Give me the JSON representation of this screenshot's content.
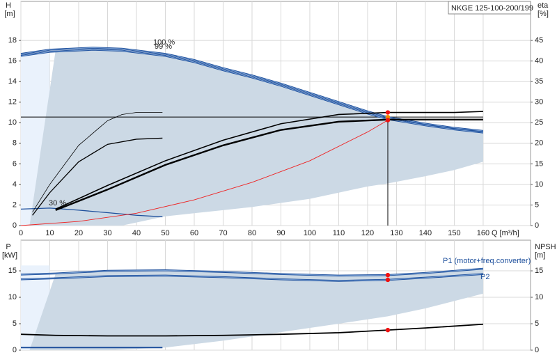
{
  "chart_data": [
    {
      "type": "line",
      "title": "NKGE 125-100-200/199",
      "x_label": "Q [m³/h]",
      "y_label": [
        "H",
        "[m]"
      ],
      "y2_label": [
        "eta",
        "[%]"
      ],
      "xlim": [
        0,
        176.4
      ],
      "xticks": [
        0,
        10,
        20,
        30,
        40,
        50,
        60,
        70,
        80,
        90,
        100,
        110,
        120,
        130,
        140,
        150,
        160
      ],
      "x_tick_labels": true,
      "ylim": [
        0,
        21.8
      ],
      "yticks": [
        0,
        2,
        4,
        6,
        8,
        10,
        12,
        14,
        16,
        18
      ],
      "y2lim": [
        0,
        54.5
      ],
      "y2ticks": [
        0,
        5,
        10,
        15,
        20,
        25,
        30,
        35,
        40,
        45
      ],
      "grid": true,
      "areas": [
        {
          "color": "#ccd9e5",
          "x": [
            3,
            12,
            25,
            35,
            50,
            60,
            70,
            80,
            90,
            100,
            110,
            120,
            127,
            140,
            150,
            160
          ],
          "upper": [
            0,
            17.0,
            17.1,
            17.0,
            16.5,
            15.9,
            15.1,
            14.4,
            13.6,
            12.7,
            11.8,
            10.9,
            10.35,
            9.75,
            9.35,
            9.05
          ],
          "lower": [
            0,
            0,
            0,
            0,
            0.9,
            1.2,
            1.5,
            1.8,
            2.2,
            2.6,
            3.2,
            3.8,
            4.1,
            4.8,
            5.4,
            6.2
          ]
        }
      ],
      "series": [
        {
          "label": "100 %",
          "color": "#1d4f9c",
          "width": 2.5,
          "x": [
            0,
            10,
            25,
            35,
            50,
            60,
            70,
            80,
            90,
            100,
            110,
            120,
            127,
            140,
            150,
            160
          ],
          "values": [
            16.7,
            17.1,
            17.3,
            17.2,
            16.7,
            16.1,
            15.3,
            14.6,
            13.8,
            12.9,
            12.0,
            11.1,
            10.55,
            9.9,
            9.5,
            9.2
          ]
        },
        {
          "label": "99 %",
          "color": "#1d4f9c",
          "width": 2.5,
          "x": [
            0,
            10,
            25,
            35,
            50,
            60,
            70,
            80,
            90,
            100,
            110,
            120,
            127,
            140,
            150,
            160
          ],
          "values": [
            16.5,
            16.9,
            17.1,
            17.0,
            16.5,
            15.9,
            15.1,
            14.4,
            13.6,
            12.7,
            11.8,
            10.9,
            10.35,
            9.75,
            9.35,
            9.05
          ]
        },
        {
          "label": "30 %",
          "color": "#1d4f9c",
          "width": 1.3,
          "x": [
            0,
            5,
            10,
            20,
            30,
            40,
            49
          ],
          "values": [
            1.6,
            1.65,
            1.7,
            1.5,
            1.25,
            1.0,
            0.85
          ]
        },
        {
          "axis": "y2",
          "color": "#000000",
          "width": 1.6,
          "x": [
            12,
            30,
            50,
            70,
            90,
            110,
            127,
            150,
            160
          ],
          "values": [
            4,
            9.75,
            15.75,
            20.75,
            24.75,
            27,
            27.5,
            27.5,
            27.75
          ]
        },
        {
          "axis": "y2",
          "color": "#000000",
          "width": 2.4,
          "x": [
            12,
            30,
            50,
            70,
            90,
            110,
            127,
            150,
            160
          ],
          "values": [
            3.75,
            8.75,
            14.75,
            19.5,
            23.25,
            25.25,
            25.75,
            25.75,
            25.75
          ]
        },
        {
          "axis": "y2",
          "color": "#000000",
          "width": 0.8,
          "x": [
            4,
            10,
            20,
            30,
            35,
            40,
            49
          ],
          "values": [
            3.25,
            10,
            19.5,
            25.5,
            27,
            27.5,
            27.5
          ]
        },
        {
          "axis": "y2",
          "color": "#000000",
          "width": 1.3,
          "x": [
            4,
            10,
            20,
            30,
            40,
            49
          ],
          "values": [
            2.5,
            8,
            15.5,
            19.75,
            21,
            21.25
          ]
        },
        {
          "color": "#ee2222",
          "width": 0.9,
          "x": [
            0,
            20,
            40,
            60,
            80,
            100,
            120,
            127
          ],
          "values": [
            0,
            0.4,
            1.2,
            2.5,
            4.2,
            6.3,
            9.1,
            10.25
          ]
        }
      ],
      "crosshair": 1,
      "points": {
        "x": [
          127,
          127,
          127
        ],
        "values": [
          11.0,
          10.55,
          10.25
        ],
        "colors": [
          "#ee1111",
          "#f08a00",
          "#ee1111"
        ]
      }
    },
    {
      "type": "line",
      "y_label": [
        "P",
        "[kW]"
      ],
      "y2_label": [
        "NPSH",
        "[m]"
      ],
      "xlim": [
        0,
        176.4
      ],
      "xticks": [
        0,
        10,
        20,
        30,
        40,
        50,
        60,
        70,
        80,
        90,
        100,
        110,
        120,
        130,
        140,
        150,
        160
      ],
      "x_tick_labels": false,
      "ylim": [
        0,
        20.8
      ],
      "yticks": [
        0,
        5,
        10,
        15
      ],
      "y2lim": [
        0,
        20.8
      ],
      "y2ticks": [
        0,
        5,
        10,
        15
      ],
      "grid": true,
      "areas": [
        {
          "color": "#ccd9e5",
          "x": [
            3,
            12,
            30,
            50,
            70,
            90,
            110,
            127,
            140,
            160
          ],
          "upper": [
            0,
            14.4,
            14.9,
            15.0,
            14.7,
            14.3,
            14.0,
            14.1,
            14.5,
            15.3
          ],
          "lower": [
            0,
            0,
            0,
            0.5,
            1.8,
            3.4,
            5.0,
            6.4,
            7.9,
            10.7
          ]
        }
      ],
      "series": [
        {
          "label": "P1 (motor+freq.converter)",
          "color": "#1d4f9c",
          "width": 2.5,
          "x": [
            0,
            12,
            30,
            50,
            70,
            90,
            110,
            127,
            140,
            160
          ],
          "values": [
            14.3,
            14.5,
            15.0,
            15.1,
            14.8,
            14.4,
            14.1,
            14.2,
            14.6,
            15.4
          ]
        },
        {
          "label": "P2",
          "color": "#1d4f9c",
          "width": 2.5,
          "x": [
            0,
            12,
            30,
            50,
            70,
            90,
            110,
            127,
            140,
            160
          ],
          "values": [
            13.4,
            13.6,
            14.0,
            14.1,
            13.8,
            13.4,
            13.1,
            13.3,
            13.7,
            14.4
          ]
        },
        {
          "axis": "y2",
          "color": "#000000",
          "width": 1.8,
          "x": [
            0,
            12,
            30,
            50,
            70,
            90,
            110,
            127,
            140,
            160
          ],
          "values": [
            3.0,
            2.8,
            2.7,
            2.7,
            2.8,
            3.0,
            3.3,
            3.8,
            4.2,
            4.9
          ]
        },
        {
          "color": "#1d4f9c",
          "width": 2,
          "x": [
            0,
            49
          ],
          "values": [
            0.5,
            0.5
          ]
        }
      ],
      "points": {
        "x": [
          127,
          127,
          127
        ],
        "values": [
          14.2,
          13.3,
          3.8
        ],
        "colors": [
          "#ee1111",
          "#ee1111",
          "#ee1111"
        ]
      }
    }
  ]
}
